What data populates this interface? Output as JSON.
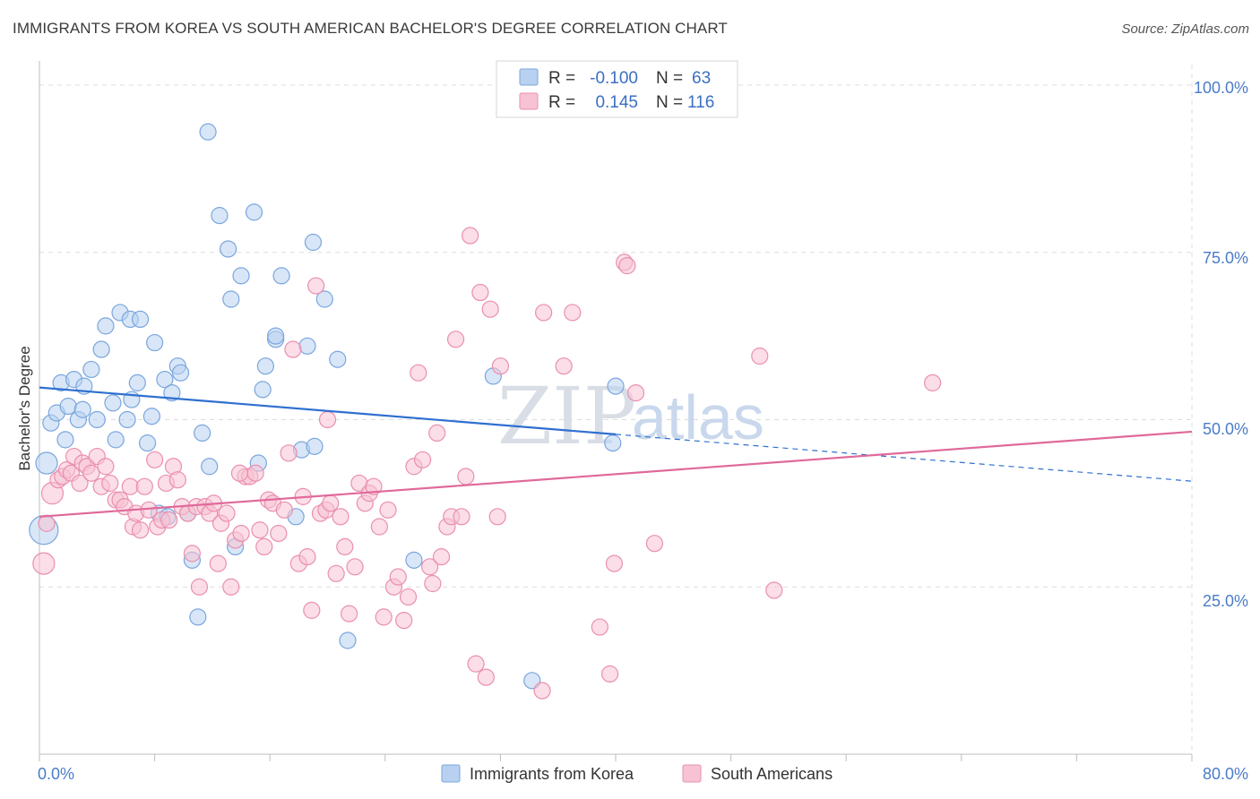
{
  "title": "IMMIGRANTS FROM KOREA VS SOUTH AMERICAN BACHELOR'S DEGREE CORRELATION CHART",
  "source": "Source: ZipAtlas.com",
  "watermark": {
    "zip": "ZIP",
    "atlas": "atlas"
  },
  "colors": {
    "korea_fill": "#b8d1f0",
    "korea_stroke": "#7aa6de",
    "korea_line": "#2f6fd0",
    "sa_fill": "#f7c3d4",
    "sa_stroke": "#ea8fae",
    "sa_line": "#e0699a",
    "grid": "#dcdcdc",
    "tick_label": "#4a7cc7"
  },
  "legend": {
    "rows": [
      {
        "r_label": "R = ",
        "r_value": "-0.100",
        "n_label": "N = ",
        "n_value": "63"
      },
      {
        "r_label": "R = ",
        "r_value": "0.145",
        "n_label": "N = ",
        "n_value": "116"
      }
    ]
  },
  "bottom_legend": [
    "Immigrants from Korea",
    "South Americans"
  ],
  "chart_data": {
    "type": "scatter",
    "ylabel": "Bachelor's Degree",
    "x_ticks": [
      "0.0%",
      "80.0%"
    ],
    "y_ticks": [
      "25.0%",
      "50.0%",
      "75.0%",
      "100.0%"
    ],
    "xlim": [
      0,
      80
    ],
    "ylim": [
      0,
      102
    ],
    "grid": true,
    "series": [
      {
        "name": "Immigrants from Korea",
        "r": -0.1,
        "n": 63,
        "trend": {
          "x": [
            0,
            40
          ],
          "y": [
            54.8,
            47.8
          ],
          "dashed_to": [
            80,
            40.8
          ]
        },
        "points": [
          {
            "x": 0.3,
            "y": 33.5,
            "s": 16
          },
          {
            "x": 0.5,
            "y": 43.5,
            "s": 12
          },
          {
            "x": 0.8,
            "y": 49.5
          },
          {
            "x": 1.2,
            "y": 51
          },
          {
            "x": 1.5,
            "y": 55.5
          },
          {
            "x": 1.8,
            "y": 47
          },
          {
            "x": 2.0,
            "y": 52
          },
          {
            "x": 2.4,
            "y": 56
          },
          {
            "x": 2.7,
            "y": 50
          },
          {
            "x": 3.1,
            "y": 55
          },
          {
            "x": 3.0,
            "y": 51.5
          },
          {
            "x": 3.6,
            "y": 57.5
          },
          {
            "x": 4.0,
            "y": 50
          },
          {
            "x": 4.3,
            "y": 60.5
          },
          {
            "x": 4.6,
            "y": 64
          },
          {
            "x": 5.1,
            "y": 52.5
          },
          {
            "x": 5.3,
            "y": 47
          },
          {
            "x": 5.6,
            "y": 66
          },
          {
            "x": 6.1,
            "y": 50
          },
          {
            "x": 6.3,
            "y": 65
          },
          {
            "x": 6.4,
            "y": 53
          },
          {
            "x": 6.8,
            "y": 55.5
          },
          {
            "x": 7.0,
            "y": 65
          },
          {
            "x": 7.5,
            "y": 46.5
          },
          {
            "x": 7.8,
            "y": 50.5
          },
          {
            "x": 8.0,
            "y": 61.5
          },
          {
            "x": 8.3,
            "y": 36
          },
          {
            "x": 8.7,
            "y": 56
          },
          {
            "x": 8.9,
            "y": 35.5
          },
          {
            "x": 9.2,
            "y": 54
          },
          {
            "x": 9.6,
            "y": 58
          },
          {
            "x": 9.8,
            "y": 57
          },
          {
            "x": 10.3,
            "y": 36
          },
          {
            "x": 10.6,
            "y": 29
          },
          {
            "x": 11.0,
            "y": 20.5
          },
          {
            "x": 11.3,
            "y": 48
          },
          {
            "x": 11.7,
            "y": 93
          },
          {
            "x": 11.8,
            "y": 43
          },
          {
            "x": 12.5,
            "y": 80.5
          },
          {
            "x": 13.1,
            "y": 75.5
          },
          {
            "x": 13.3,
            "y": 68
          },
          {
            "x": 13.6,
            "y": 31
          },
          {
            "x": 14.0,
            "y": 71.5
          },
          {
            "x": 14.9,
            "y": 81
          },
          {
            "x": 15.2,
            "y": 43.5
          },
          {
            "x": 15.5,
            "y": 54.5
          },
          {
            "x": 15.7,
            "y": 58
          },
          {
            "x": 16.4,
            "y": 62
          },
          {
            "x": 16.8,
            "y": 71.5
          },
          {
            "x": 17.8,
            "y": 35.5
          },
          {
            "x": 18.2,
            "y": 45.5
          },
          {
            "x": 18.6,
            "y": 61
          },
          {
            "x": 19.0,
            "y": 76.5
          },
          {
            "x": 19.1,
            "y": 46
          },
          {
            "x": 19.8,
            "y": 68
          },
          {
            "x": 20.7,
            "y": 59
          },
          {
            "x": 21.4,
            "y": 17
          },
          {
            "x": 26.0,
            "y": 29
          },
          {
            "x": 31.5,
            "y": 56.5
          },
          {
            "x": 34.2,
            "y": 11
          },
          {
            "x": 39.8,
            "y": 46.5
          },
          {
            "x": 40.0,
            "y": 55
          },
          {
            "x": 16.4,
            "y": 62.5
          }
        ]
      },
      {
        "name": "South Americans",
        "r": 0.145,
        "n": 116,
        "trend": {
          "x": [
            0,
            80
          ],
          "y": [
            35.5,
            48.2
          ]
        },
        "points": [
          {
            "x": 0.3,
            "y": 28.5,
            "s": 12
          },
          {
            "x": 0.5,
            "y": 34.5
          },
          {
            "x": 0.9,
            "y": 39,
            "s": 12
          },
          {
            "x": 1.3,
            "y": 41
          },
          {
            "x": 1.6,
            "y": 41.5
          },
          {
            "x": 1.9,
            "y": 42.5
          },
          {
            "x": 2.2,
            "y": 42
          },
          {
            "x": 2.4,
            "y": 44.5
          },
          {
            "x": 2.8,
            "y": 40.5
          },
          {
            "x": 3.0,
            "y": 43.5
          },
          {
            "x": 3.3,
            "y": 43
          },
          {
            "x": 3.6,
            "y": 42
          },
          {
            "x": 4.0,
            "y": 44.5
          },
          {
            "x": 4.3,
            "y": 40
          },
          {
            "x": 4.6,
            "y": 43
          },
          {
            "x": 4.9,
            "y": 40.5
          },
          {
            "x": 5.3,
            "y": 38
          },
          {
            "x": 5.6,
            "y": 38
          },
          {
            "x": 5.9,
            "y": 37
          },
          {
            "x": 6.3,
            "y": 40
          },
          {
            "x": 6.5,
            "y": 34
          },
          {
            "x": 6.7,
            "y": 36
          },
          {
            "x": 7.0,
            "y": 33.5
          },
          {
            "x": 7.3,
            "y": 40
          },
          {
            "x": 7.6,
            "y": 36.5
          },
          {
            "x": 8.0,
            "y": 44
          },
          {
            "x": 8.2,
            "y": 34
          },
          {
            "x": 8.5,
            "y": 35
          },
          {
            "x": 8.8,
            "y": 40.5
          },
          {
            "x": 9.0,
            "y": 35
          },
          {
            "x": 9.3,
            "y": 43
          },
          {
            "x": 9.6,
            "y": 41
          },
          {
            "x": 9.9,
            "y": 37
          },
          {
            "x": 10.3,
            "y": 36
          },
          {
            "x": 10.6,
            "y": 30
          },
          {
            "x": 10.9,
            "y": 37
          },
          {
            "x": 11.1,
            "y": 25
          },
          {
            "x": 11.5,
            "y": 37
          },
          {
            "x": 11.8,
            "y": 36
          },
          {
            "x": 12.1,
            "y": 37.5
          },
          {
            "x": 12.4,
            "y": 28.5
          },
          {
            "x": 12.6,
            "y": 34.5
          },
          {
            "x": 13.0,
            "y": 36
          },
          {
            "x": 13.3,
            "y": 25
          },
          {
            "x": 13.6,
            "y": 32
          },
          {
            "x": 14.0,
            "y": 33
          },
          {
            "x": 14.3,
            "y": 41.5
          },
          {
            "x": 14.6,
            "y": 41.5
          },
          {
            "x": 15.0,
            "y": 42
          },
          {
            "x": 15.3,
            "y": 33.5
          },
          {
            "x": 15.6,
            "y": 31
          },
          {
            "x": 15.9,
            "y": 38
          },
          {
            "x": 16.2,
            "y": 37.5
          },
          {
            "x": 16.6,
            "y": 33
          },
          {
            "x": 17.0,
            "y": 36.5
          },
          {
            "x": 17.3,
            "y": 45
          },
          {
            "x": 17.6,
            "y": 60.5
          },
          {
            "x": 18.0,
            "y": 28.5
          },
          {
            "x": 18.3,
            "y": 38.5
          },
          {
            "x": 18.6,
            "y": 29.5
          },
          {
            "x": 18.9,
            "y": 21.5
          },
          {
            "x": 19.2,
            "y": 70
          },
          {
            "x": 19.5,
            "y": 36
          },
          {
            "x": 19.9,
            "y": 36.5
          },
          {
            "x": 20.2,
            "y": 37.5
          },
          {
            "x": 20.6,
            "y": 27
          },
          {
            "x": 20.9,
            "y": 35.5
          },
          {
            "x": 21.2,
            "y": 31
          },
          {
            "x": 21.5,
            "y": 21
          },
          {
            "x": 21.9,
            "y": 28
          },
          {
            "x": 22.2,
            "y": 40.5
          },
          {
            "x": 22.6,
            "y": 37.5
          },
          {
            "x": 22.9,
            "y": 39
          },
          {
            "x": 23.2,
            "y": 40
          },
          {
            "x": 23.6,
            "y": 34
          },
          {
            "x": 23.9,
            "y": 20.5
          },
          {
            "x": 24.2,
            "y": 36.5
          },
          {
            "x": 24.6,
            "y": 25
          },
          {
            "x": 24.9,
            "y": 26.5
          },
          {
            "x": 25.3,
            "y": 20
          },
          {
            "x": 25.6,
            "y": 23.5
          },
          {
            "x": 26.0,
            "y": 43
          },
          {
            "x": 26.3,
            "y": 57
          },
          {
            "x": 26.6,
            "y": 44
          },
          {
            "x": 27.1,
            "y": 28
          },
          {
            "x": 27.3,
            "y": 25.5
          },
          {
            "x": 27.6,
            "y": 48
          },
          {
            "x": 27.9,
            "y": 29.5
          },
          {
            "x": 28.3,
            "y": 34
          },
          {
            "x": 28.6,
            "y": 35.5
          },
          {
            "x": 28.9,
            "y": 62
          },
          {
            "x": 29.3,
            "y": 35.5
          },
          {
            "x": 29.6,
            "y": 41.5
          },
          {
            "x": 29.9,
            "y": 77.5
          },
          {
            "x": 30.3,
            "y": 13.5
          },
          {
            "x": 30.6,
            "y": 69
          },
          {
            "x": 31.0,
            "y": 11.5
          },
          {
            "x": 31.3,
            "y": 66.5
          },
          {
            "x": 31.8,
            "y": 35.5
          },
          {
            "x": 32.0,
            "y": 58
          },
          {
            "x": 34.9,
            "y": 9.5
          },
          {
            "x": 35.0,
            "y": 66
          },
          {
            "x": 36.4,
            "y": 58
          },
          {
            "x": 37.0,
            "y": 66
          },
          {
            "x": 38.9,
            "y": 19
          },
          {
            "x": 39.6,
            "y": 12
          },
          {
            "x": 39.9,
            "y": 28.5
          },
          {
            "x": 40.6,
            "y": 73.5
          },
          {
            "x": 40.8,
            "y": 73
          },
          {
            "x": 41.4,
            "y": 54
          },
          {
            "x": 42.7,
            "y": 31.5
          },
          {
            "x": 50.0,
            "y": 59.5
          },
          {
            "x": 51.0,
            "y": 24.5
          },
          {
            "x": 62.0,
            "y": 55.5
          },
          {
            "x": 20.0,
            "y": 50
          },
          {
            "x": 13.9,
            "y": 42
          }
        ]
      }
    ]
  }
}
